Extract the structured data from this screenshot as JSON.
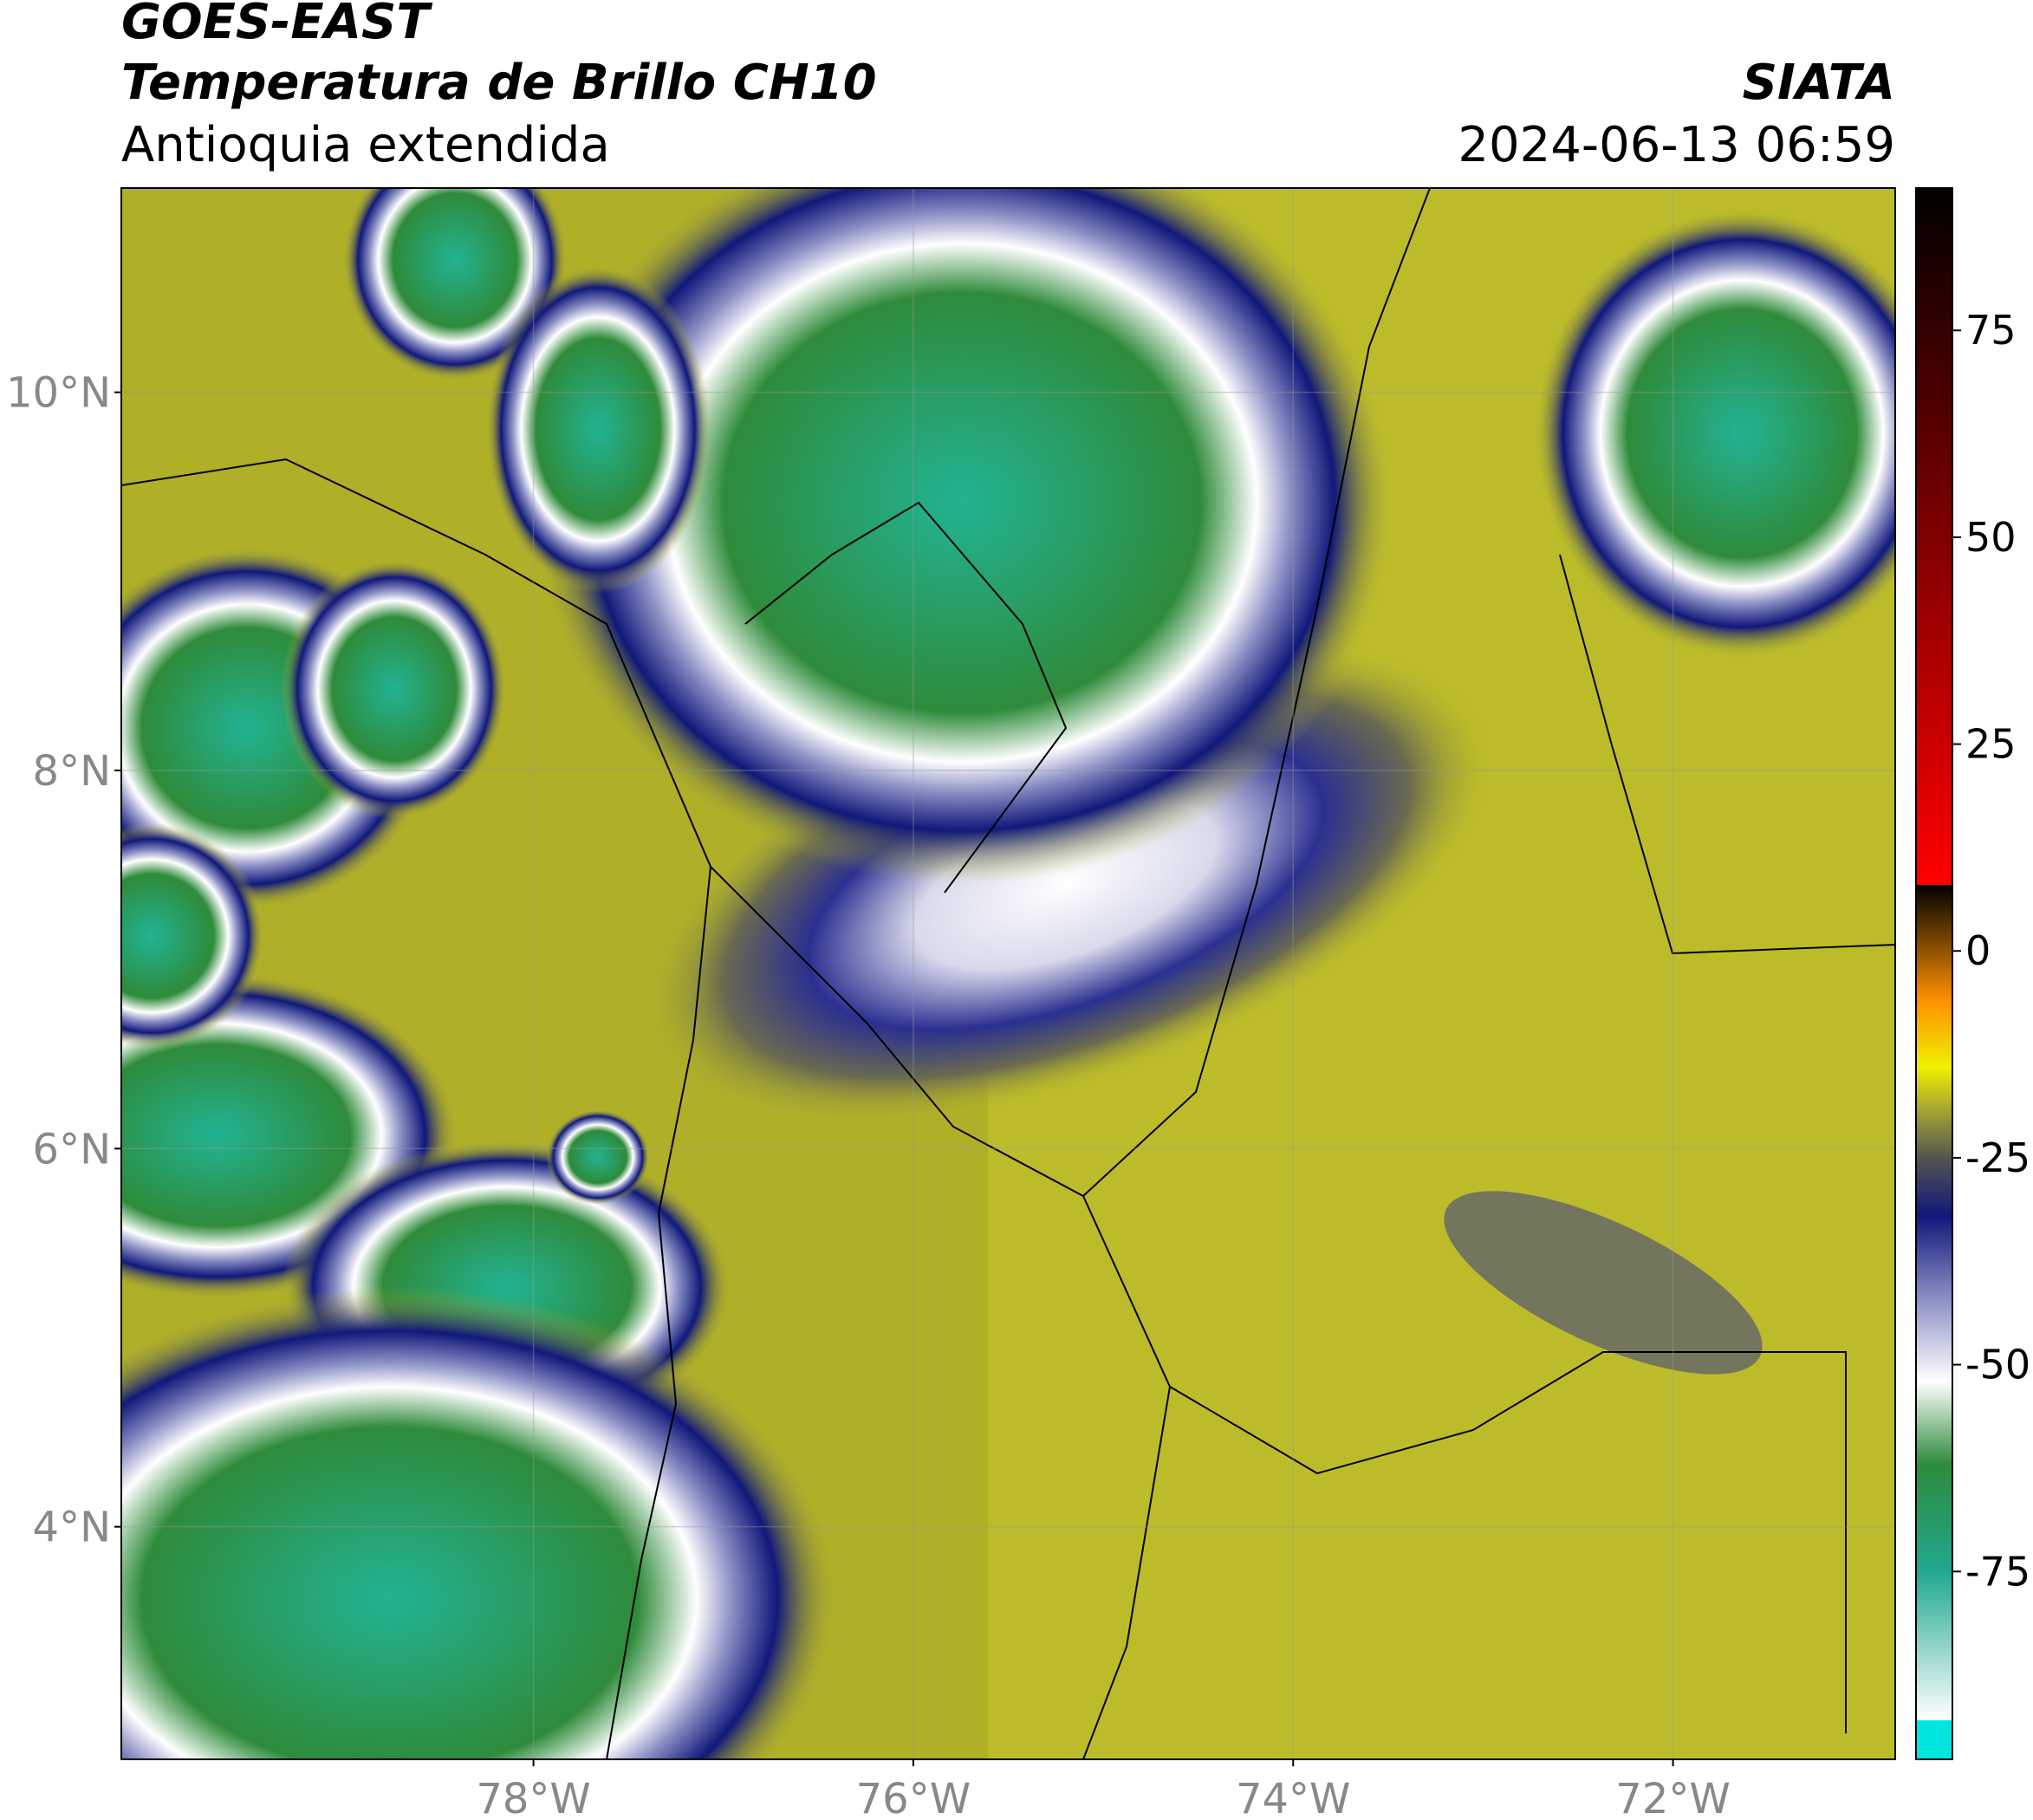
{
  "header": {
    "title": "GOES-EAST",
    "subtitle": "Temperatura de Brillo CH10",
    "region": "Antioquia extendida",
    "source": "SIATA",
    "datetime": "2024-06-13 06:59"
  },
  "map": {
    "xlim": [
      -80.17,
      -70.83
    ],
    "ylim": [
      2.77,
      11.08
    ],
    "xticks": [
      {
        "value": -78,
        "label": "78°W"
      },
      {
        "value": -76,
        "label": "76°W"
      },
      {
        "value": -74,
        "label": "74°W"
      },
      {
        "value": -72,
        "label": "72°W"
      }
    ],
    "yticks": [
      {
        "value": 10,
        "label": "10°N"
      },
      {
        "value": 8,
        "label": "8°N"
      },
      {
        "value": 6,
        "label": "6°N"
      },
      {
        "value": 4,
        "label": "4°N"
      }
    ],
    "grid": true
  },
  "colorbar": {
    "lim": [
      -97.7,
      92.2
    ],
    "ticks": [
      75,
      50,
      25,
      0,
      -25,
      -50,
      -75
    ],
    "stops": [
      {
        "value": -93,
        "color": "#ffffff"
      },
      {
        "value": -93,
        "color": "#00e5dd"
      },
      {
        "value": -75,
        "color": "#20a890"
      },
      {
        "value": -62,
        "color": "#2e8b3a"
      },
      {
        "value": -52,
        "color": "#ffffff"
      },
      {
        "value": -42,
        "color": "#8a8fc4"
      },
      {
        "value": -32,
        "color": "#10187a"
      },
      {
        "value": -25,
        "color": "#555550"
      },
      {
        "value": -19,
        "color": "#a8a830"
      },
      {
        "value": -14,
        "color": "#f0f000"
      },
      {
        "value": -6,
        "color": "#ff9000"
      },
      {
        "value": 8,
        "color": "#ff0000"
      },
      {
        "value": 8,
        "color": "#000000"
      },
      {
        "value": 92.2,
        "color": "#000000"
      }
    ]
  }
}
